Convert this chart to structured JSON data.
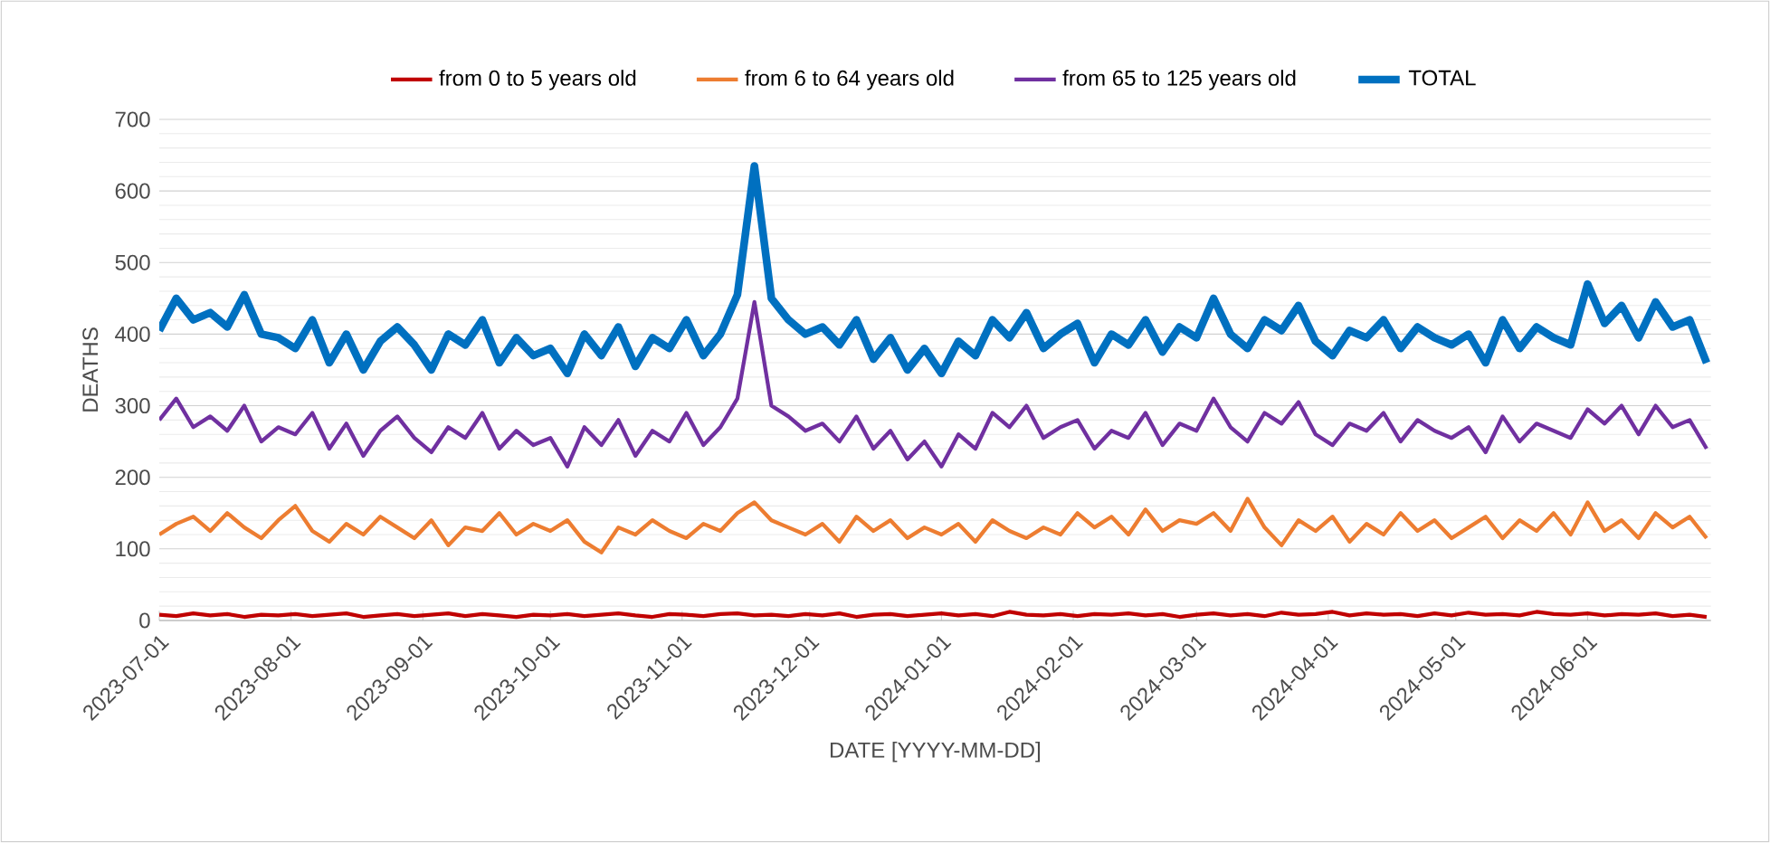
{
  "chart_data": {
    "type": "line",
    "xlabel": "DATE [YYYY-MM-DD]",
    "ylabel": "DEATHS",
    "x": [
      "2023-07-01",
      "2023-07-05",
      "2023-07-09",
      "2023-07-13",
      "2023-07-17",
      "2023-07-21",
      "2023-07-25",
      "2023-07-29",
      "2023-08-02",
      "2023-08-06",
      "2023-08-10",
      "2023-08-14",
      "2023-08-18",
      "2023-08-22",
      "2023-08-26",
      "2023-08-30",
      "2023-09-03",
      "2023-09-07",
      "2023-09-11",
      "2023-09-15",
      "2023-09-19",
      "2023-09-23",
      "2023-09-27",
      "2023-10-01",
      "2023-10-05",
      "2023-10-09",
      "2023-10-13",
      "2023-10-17",
      "2023-10-21",
      "2023-10-25",
      "2023-10-29",
      "2023-11-02",
      "2023-11-06",
      "2023-11-10",
      "2023-11-14",
      "2023-11-18",
      "2023-11-22",
      "2023-11-26",
      "2023-11-30",
      "2023-12-04",
      "2023-12-08",
      "2023-12-12",
      "2023-12-16",
      "2023-12-20",
      "2023-12-24",
      "2023-12-28",
      "2024-01-01",
      "2024-01-05",
      "2024-01-09",
      "2024-01-13",
      "2024-01-17",
      "2024-01-21",
      "2024-01-25",
      "2024-01-29",
      "2024-02-02",
      "2024-02-06",
      "2024-02-10",
      "2024-02-14",
      "2024-02-18",
      "2024-02-22",
      "2024-02-26",
      "2024-03-01",
      "2024-03-05",
      "2024-03-09",
      "2024-03-13",
      "2024-03-17",
      "2024-03-21",
      "2024-03-25",
      "2024-03-29",
      "2024-04-02",
      "2024-04-06",
      "2024-04-10",
      "2024-04-14",
      "2024-04-18",
      "2024-04-22",
      "2024-04-26",
      "2024-04-30",
      "2024-05-04",
      "2024-05-08",
      "2024-05-12",
      "2024-05-16",
      "2024-05-20",
      "2024-05-24",
      "2024-05-28",
      "2024-06-01",
      "2024-06-05",
      "2024-06-09",
      "2024-06-13",
      "2024-06-17",
      "2024-06-21",
      "2024-06-25",
      "2024-06-29"
    ],
    "series": [
      {
        "name": "from 0 to 5 years old",
        "color": "#c00000",
        "values": [
          8,
          6,
          10,
          7,
          9,
          5,
          8,
          7,
          9,
          6,
          8,
          10,
          5,
          7,
          9,
          6,
          8,
          10,
          6,
          9,
          7,
          5,
          8,
          7,
          9,
          6,
          8,
          10,
          7,
          5,
          9,
          8,
          6,
          9,
          10,
          7,
          8,
          6,
          9,
          7,
          10,
          5,
          8,
          9,
          6,
          8,
          10,
          7,
          9,
          6,
          12,
          8,
          7,
          9,
          6,
          9,
          8,
          10,
          7,
          9,
          5,
          8,
          10,
          7,
          9,
          6,
          11,
          8,
          9,
          12,
          7,
          10,
          8,
          9,
          6,
          10,
          7,
          11,
          8,
          9,
          7,
          12,
          9,
          8,
          10,
          7,
          9,
          8,
          10,
          6,
          8,
          5
        ]
      },
      {
        "name": "from 6 to 64 years old",
        "color": "#ed7d31",
        "values": [
          120,
          135,
          145,
          125,
          150,
          130,
          115,
          140,
          160,
          125,
          110,
          135,
          120,
          145,
          130,
          115,
          140,
          105,
          130,
          125,
          150,
          120,
          135,
          125,
          140,
          110,
          95,
          130,
          120,
          140,
          125,
          115,
          135,
          125,
          150,
          165,
          140,
          130,
          120,
          135,
          110,
          145,
          125,
          140,
          115,
          130,
          120,
          135,
          110,
          140,
          125,
          115,
          130,
          120,
          150,
          130,
          145,
          120,
          155,
          125,
          140,
          135,
          150,
          125,
          170,
          130,
          105,
          140,
          125,
          145,
          110,
          135,
          120,
          150,
          125,
          140,
          115,
          130,
          145,
          115,
          140,
          125,
          150,
          120,
          165,
          125,
          140,
          115,
          150,
          130,
          145,
          115
        ]
      },
      {
        "name": "from 65 to 125 years old",
        "color": "#7030a0",
        "values": [
          280,
          310,
          270,
          285,
          265,
          300,
          250,
          270,
          260,
          290,
          240,
          275,
          230,
          265,
          285,
          255,
          235,
          270,
          255,
          290,
          240,
          265,
          245,
          255,
          215,
          270,
          245,
          280,
          230,
          265,
          250,
          290,
          245,
          270,
          310,
          445,
          300,
          285,
          265,
          275,
          250,
          285,
          240,
          265,
          225,
          250,
          215,
          260,
          240,
          290,
          270,
          300,
          255,
          270,
          280,
          240,
          265,
          255,
          290,
          245,
          275,
          265,
          310,
          270,
          250,
          290,
          275,
          305,
          260,
          245,
          275,
          265,
          290,
          250,
          280,
          265,
          255,
          270,
          235,
          285,
          250,
          275,
          265,
          255,
          295,
          275,
          300,
          260,
          300,
          270,
          280,
          240
        ]
      },
      {
        "name": "TOTAL",
        "color": "#0070c0",
        "values": [
          405,
          450,
          420,
          430,
          410,
          455,
          400,
          395,
          380,
          420,
          360,
          400,
          350,
          390,
          410,
          385,
          350,
          400,
          385,
          420,
          360,
          395,
          370,
          380,
          345,
          400,
          370,
          410,
          355,
          395,
          380,
          420,
          370,
          400,
          455,
          635,
          450,
          420,
          400,
          410,
          385,
          420,
          365,
          395,
          350,
          380,
          345,
          390,
          370,
          420,
          395,
          430,
          380,
          400,
          415,
          360,
          400,
          385,
          420,
          375,
          410,
          395,
          450,
          400,
          380,
          420,
          405,
          440,
          390,
          370,
          405,
          395,
          420,
          380,
          410,
          395,
          385,
          400,
          360,
          420,
          380,
          410,
          395,
          385,
          470,
          415,
          440,
          395,
          445,
          410,
          420,
          360
        ]
      }
    ],
    "xlim": [
      "2023-07-01",
      "2024-06-30"
    ],
    "xticks": [
      "2023-07-01",
      "2023-08-01",
      "2023-09-01",
      "2023-10-01",
      "2023-11-01",
      "2023-12-01",
      "2024-01-01",
      "2024-02-01",
      "2024-03-01",
      "2024-04-01",
      "2024-05-01",
      "2024-06-01"
    ],
    "ylim": [
      0,
      700
    ],
    "yticks": [
      0,
      100,
      200,
      300,
      400,
      500,
      600,
      700
    ],
    "grid": "y",
    "legend": "top",
    "marker": "none",
    "line_style": "solid"
  }
}
